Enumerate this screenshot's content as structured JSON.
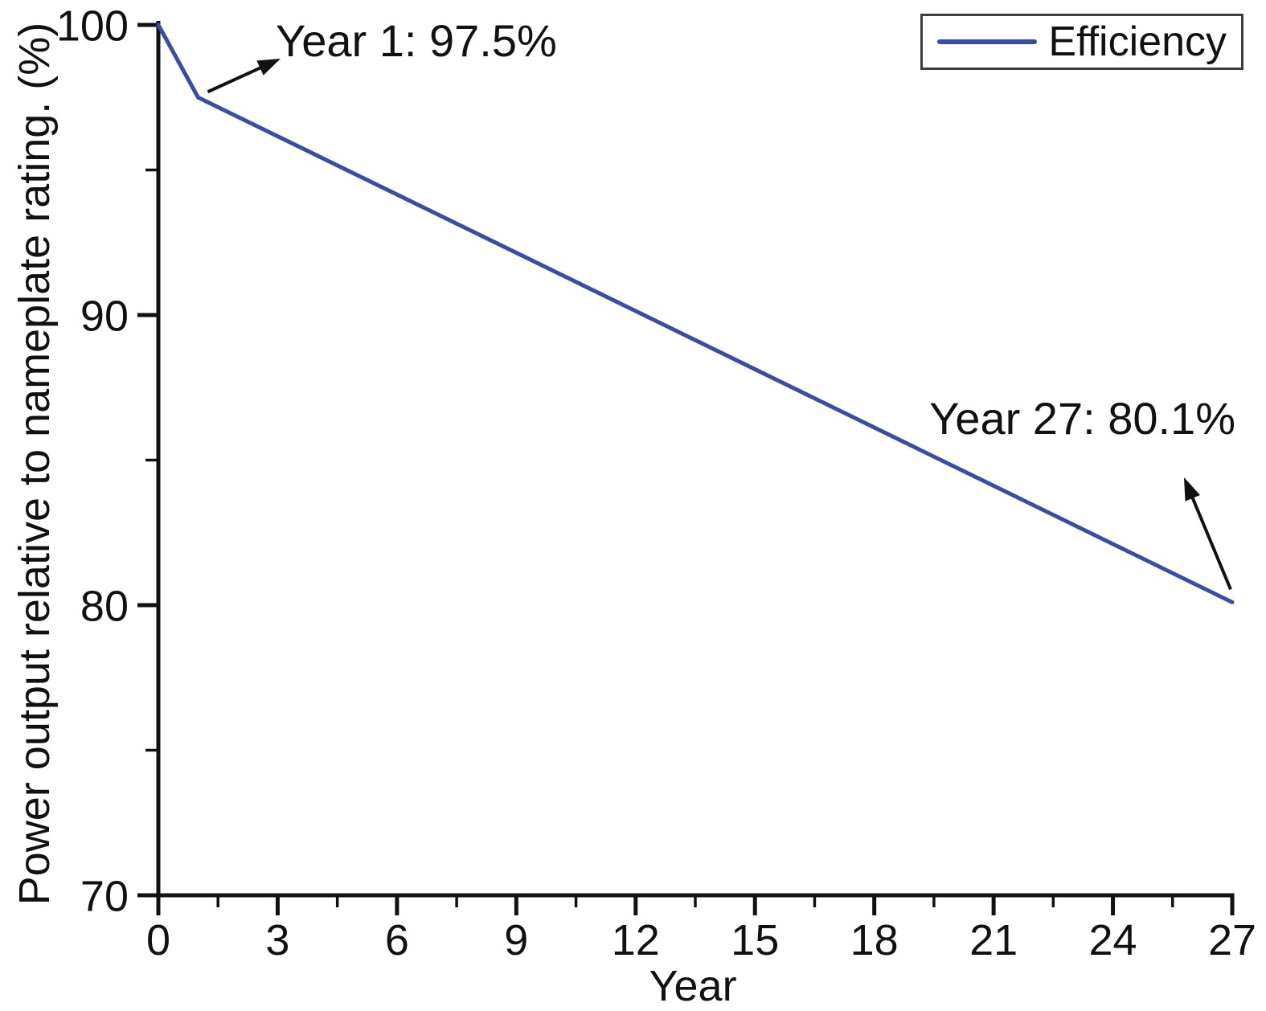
{
  "chart_data": {
    "type": "line",
    "title": "",
    "xlabel": "Year",
    "ylabel": "Power output relative to nameplate rating. (%)",
    "xlim": [
      0,
      27
    ],
    "ylim": [
      70,
      100
    ],
    "x_major_ticks": [
      0,
      3,
      6,
      9,
      12,
      15,
      18,
      21,
      24,
      27
    ],
    "x_minor_ticks": [
      1.5,
      4.5,
      7.5,
      10.5,
      13.5,
      16.5,
      19.5,
      22.5,
      25.5
    ],
    "y_major_ticks": [
      100,
      90,
      80,
      70
    ],
    "y_minor_ticks": [
      95,
      85,
      75
    ],
    "grid": false,
    "background_color": "#ffffff",
    "axis_color": "#111111",
    "legend": {
      "position": "top-right",
      "entries": [
        {
          "label": "Efficiency",
          "color": "#3a4da6",
          "style": "solid-line"
        }
      ]
    },
    "series": [
      {
        "name": "Efficiency",
        "color": "#3a4da6",
        "points": [
          [
            0,
            100
          ],
          [
            1,
            97.5
          ],
          [
            27,
            80.1
          ]
        ]
      }
    ],
    "annotations": [
      {
        "text": "Year 1: 97.5%",
        "point": [
          1,
          97.5
        ],
        "arrow": true
      },
      {
        "text": "Year 27: 80.1%",
        "point": [
          27,
          80.1
        ],
        "arrow": true
      }
    ]
  }
}
